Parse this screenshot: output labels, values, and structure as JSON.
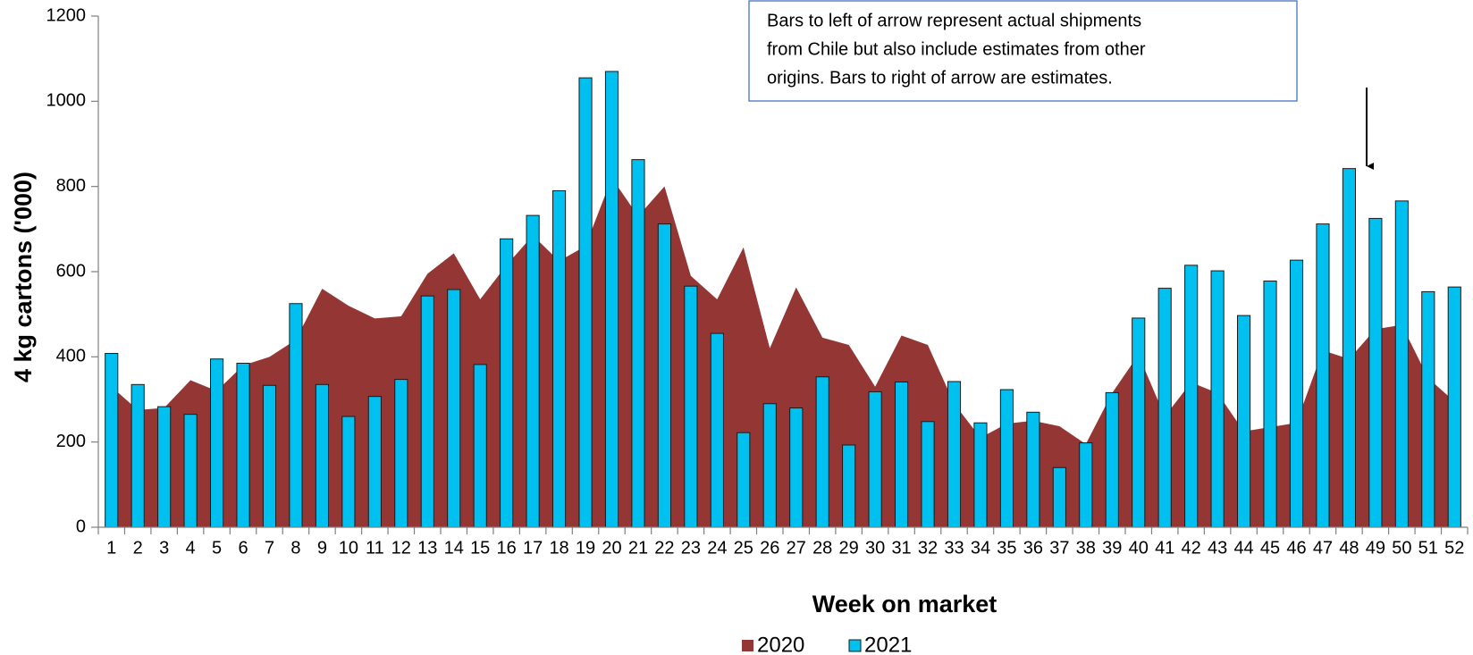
{
  "chart_data": {
    "type": "bar_area",
    "x_label": "Week on market",
    "y_label": "4 kg cartons ('000)",
    "annotation": [
      "Bars to left of arrow represent actual shipments",
      "from Chile but also include estimates from other",
      "origins. Bars to right of arrow are estimates."
    ],
    "categories": [
      "1",
      "2",
      "3",
      "4",
      "5",
      "6",
      "7",
      "8",
      "9",
      "10",
      "11",
      "12",
      "13",
      "14",
      "15",
      "16",
      "17",
      "18",
      "19",
      "20",
      "21",
      "22",
      "23",
      "24",
      "25",
      "26",
      "27",
      "28",
      "29",
      "30",
      "31",
      "32",
      "33",
      "34",
      "35",
      "36",
      "37",
      "38",
      "39",
      "40",
      "41",
      "42",
      "43",
      "44",
      "45",
      "46",
      "47",
      "48",
      "49",
      "50",
      "51",
      "52"
    ],
    "series": [
      {
        "name": "2020",
        "kind": "area",
        "color": "#943634",
        "values": [
          330,
          275,
          280,
          345,
          320,
          380,
          400,
          440,
          560,
          520,
          490,
          495,
          595,
          643,
          535,
          615,
          685,
          625,
          660,
          820,
          730,
          800,
          590,
          535,
          657,
          420,
          563,
          445,
          428,
          330,
          450,
          428,
          290,
          210,
          243,
          250,
          237,
          195,
          315,
          405,
          260,
          340,
          315,
          225,
          235,
          245,
          415,
          395,
          465,
          475,
          350,
          295
        ]
      },
      {
        "name": "2021",
        "kind": "bar",
        "color": "#00c0f0",
        "values": [
          408,
          335,
          283,
          265,
          395,
          385,
          333,
          525,
          335,
          260,
          307,
          347,
          543,
          558,
          382,
          677,
          732,
          790,
          1055,
          1070,
          863,
          712,
          566,
          455,
          222,
          290,
          280,
          353,
          193,
          318,
          341,
          248,
          342,
          245,
          323,
          270,
          140,
          198,
          316,
          491,
          561,
          615,
          602,
          497,
          578,
          627,
          712,
          842,
          725,
          766,
          553,
          564
        ]
      }
    ],
    "ylim": [
      0,
      1200
    ],
    "yticks": [
      0,
      200,
      400,
      600,
      800,
      1000,
      1200
    ],
    "grid": false,
    "legend": "bottom"
  }
}
